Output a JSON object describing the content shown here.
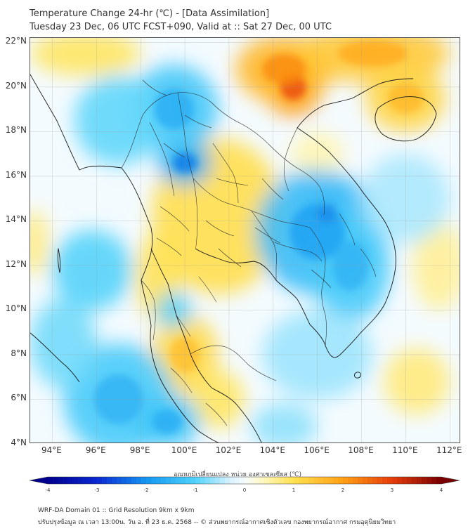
{
  "header": {
    "title_line1": "Temperature Change 24-hr (℃) - [Data Assimilation]",
    "title_line2": "Tuesday 23 Dec, 06 UTC FCST+090, Valid at :: Sat 27 Dec, 00 UTC"
  },
  "map": {
    "lon_range": [
      93,
      112.5
    ],
    "lat_range": [
      4,
      22.2
    ],
    "lat_labels": [
      "22°N",
      "20°N",
      "18°N",
      "16°N",
      "14°N",
      "12°N",
      "10°N",
      "8°N",
      "6°N",
      "4°N"
    ],
    "lat_values": [
      22,
      20,
      18,
      16,
      14,
      12,
      10,
      8,
      6,
      4
    ],
    "lon_labels": [
      "94°E",
      "96°E",
      "98°E",
      "100°E",
      "102°E",
      "104°E",
      "106°E",
      "108°E",
      "110°E",
      "112°E"
    ],
    "lon_values": [
      94,
      96,
      98,
      100,
      102,
      104,
      106,
      108,
      110,
      112
    ],
    "anomalies": [
      {
        "lon": 104.9,
        "lat": 20.0,
        "value": 2.8,
        "rx": 1.3,
        "ry": 1.3
      },
      {
        "lon": 104.5,
        "lat": 20.8,
        "value": 2.2,
        "rx": 2.2,
        "ry": 1.5
      },
      {
        "lon": 108.5,
        "lat": 21.5,
        "value": 1.8,
        "rx": 3.5,
        "ry": 1.3
      },
      {
        "lon": 110.0,
        "lat": 19.5,
        "value": 1.6,
        "rx": 1.8,
        "ry": 1.5
      },
      {
        "lon": 101.5,
        "lat": 14.2,
        "value": 1.4,
        "rx": 3.0,
        "ry": 3.5
      },
      {
        "lon": 98.8,
        "lat": 11.5,
        "value": 1.3,
        "rx": 1.0,
        "ry": 2.0
      },
      {
        "lon": 100.0,
        "lat": 8.0,
        "value": 1.5,
        "rx": 1.5,
        "ry": 1.8
      },
      {
        "lon": 101.5,
        "lat": 6.0,
        "value": 1.2,
        "rx": 1.2,
        "ry": 1.3
      },
      {
        "lon": 95.5,
        "lat": 21.5,
        "value": 1.2,
        "rx": 2.5,
        "ry": 1.0
      },
      {
        "lon": 93.2,
        "lat": 13.0,
        "value": 1.0,
        "rx": 0.6,
        "ry": 1.5
      },
      {
        "lon": 110.5,
        "lat": 6.8,
        "value": 1.0,
        "rx": 1.5,
        "ry": 1.5
      },
      {
        "lon": 111.5,
        "lat": 12.0,
        "value": 0.8,
        "rx": 1.2,
        "ry": 2.0
      },
      {
        "lon": 106.0,
        "lat": 17.0,
        "value": 0.6,
        "rx": 1.2,
        "ry": 1.0
      },
      {
        "lon": 106.4,
        "lat": 14.3,
        "value": -3.0,
        "rx": 1.0,
        "ry": 0.9
      },
      {
        "lon": 106.0,
        "lat": 13.5,
        "value": -1.8,
        "rx": 2.8,
        "ry": 2.8
      },
      {
        "lon": 107.5,
        "lat": 12.0,
        "value": -1.5,
        "rx": 1.8,
        "ry": 2.5
      },
      {
        "lon": 100.0,
        "lat": 16.6,
        "value": -2.2,
        "rx": 1.2,
        "ry": 1.0
      },
      {
        "lon": 99.5,
        "lat": 19.0,
        "value": -1.6,
        "rx": 2.0,
        "ry": 2.0
      },
      {
        "lon": 97.0,
        "lat": 18.5,
        "value": -1.2,
        "rx": 2.0,
        "ry": 2.0
      },
      {
        "lon": 97.0,
        "lat": 6.0,
        "value": -1.5,
        "rx": 2.5,
        "ry": 2.5
      },
      {
        "lon": 99.2,
        "lat": 5.0,
        "value": -1.6,
        "rx": 1.5,
        "ry": 1.2
      },
      {
        "lon": 95.8,
        "lat": 11.8,
        "value": -1.3,
        "rx": 1.8,
        "ry": 1.8
      },
      {
        "lon": 94.5,
        "lat": 8.5,
        "value": -1.1,
        "rx": 1.5,
        "ry": 2.0
      },
      {
        "lon": 99.5,
        "lat": 10.0,
        "value": -1.4,
        "rx": 0.8,
        "ry": 0.8
      },
      {
        "lon": 106.0,
        "lat": 8.0,
        "value": -0.8,
        "rx": 2.5,
        "ry": 2.0
      },
      {
        "lon": 110.0,
        "lat": 15.0,
        "value": -0.7,
        "rx": 2.0,
        "ry": 2.0
      },
      {
        "lon": 104.5,
        "lat": 4.8,
        "value": -0.9,
        "rx": 1.5,
        "ry": 1.0
      }
    ]
  },
  "colorbar": {
    "title": "อุณหภูมิเปลี่ยนแปลง หน่วย องศาเซลเซียส (℃)",
    "range": [
      -4,
      4
    ],
    "tick_values": [
      -4,
      -3,
      -2,
      -1,
      0,
      1,
      2,
      3,
      4
    ],
    "tick_labels": [
      "-4",
      "-3",
      "-2",
      "-1",
      "0",
      "1",
      "2",
      "3",
      "4"
    ]
  },
  "footer": {
    "line1": "WRF-DA Domain 01 :: Grid Resolution 9km x 9km",
    "line2": "ปรับปรุงข้อมูล ณ เวลา 13:00น. วัน อ. ที่ 23 ธ.ค. 2568 -- © ส่วนพยากรณ์อากาศเชิงตัวเลข กองพยากรณ์อากาศ กรมอุตุนิยมวิทยา"
  }
}
